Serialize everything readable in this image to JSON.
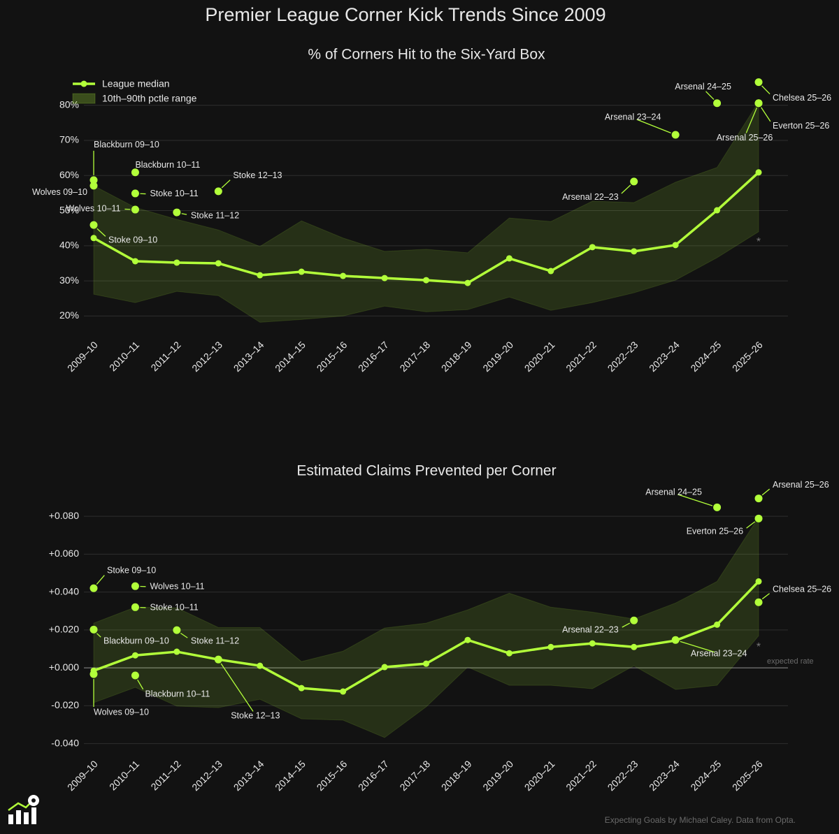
{
  "title": "Premier League Corner Kick Trends Since 2009",
  "footer": "Expecting Goals by Michael Caley. Data from Opta.",
  "chart_data": [
    {
      "type": "line",
      "title": "% of Corners Hit to the Six-Yard Box",
      "categories": [
        "2009–10",
        "2010–11",
        "2011–12",
        "2012–13",
        "2013–14",
        "2014–15",
        "2015–16",
        "2016–17",
        "2017–18",
        "2018–19",
        "2019–20",
        "2020–21",
        "2021–22",
        "2022–23",
        "2023–24",
        "2024–25",
        "2025–26"
      ],
      "series": [
        {
          "name": "League median",
          "color": "#b2ff3a",
          "values": [
            42.2,
            35.6,
            35.2,
            35.0,
            31.6,
            32.6,
            31.4,
            30.8,
            30.2,
            29.4,
            36.4,
            32.8,
            39.6,
            38.4,
            40.2,
            50.1,
            60.9
          ]
        }
      ],
      "band": {
        "name": "10th–90th pctle range",
        "color": "#b2ff3a",
        "lower": [
          26.2,
          23.8,
          27.0,
          25.8,
          18.2,
          19.0,
          20.0,
          22.8,
          21.2,
          21.8,
          25.4,
          21.6,
          23.8,
          26.6,
          30.2,
          36.6,
          44.0
        ],
        "upper": [
          57.1,
          50.9,
          47.5,
          44.5,
          39.8,
          47.1,
          42.2,
          38.4,
          39.0,
          38.0,
          47.9,
          46.9,
          52.7,
          52.3,
          58.1,
          62.3,
          81.0
        ]
      },
      "highlights": [
        {
          "label": "Blackburn 09–10",
          "category": "2009–10",
          "value": 58.7
        },
        {
          "label": "Wolves 09–10",
          "category": "2009–10",
          "value": 57.1
        },
        {
          "label": "Stoke 09–10",
          "category": "2009–10",
          "value": 45.9
        },
        {
          "label": "Blackburn 10–11",
          "category": "2010–11",
          "value": 60.9
        },
        {
          "label": "Stoke 10–11",
          "category": "2010–11",
          "value": 54.9
        },
        {
          "label": "Wolves 10–11",
          "category": "2010–11",
          "value": 50.3
        },
        {
          "label": "Stoke 11–12",
          "category": "2011–12",
          "value": 49.5
        },
        {
          "label": "Stoke 12–13",
          "category": "2012–13",
          "value": 55.5
        },
        {
          "label": "Arsenal 22–23",
          "category": "2022–23",
          "value": 58.3
        },
        {
          "label": "Arsenal 23–24",
          "category": "2023–24",
          "value": 71.6
        },
        {
          "label": "Arsenal 24–25",
          "category": "2024–25",
          "value": 80.6
        },
        {
          "label": "Chelsea 25–26",
          "category": "2025–26",
          "value": 86.6
        },
        {
          "label": "Everton 25–26",
          "category": "2025–26",
          "value": 80.6
        },
        {
          "label": "Arsenal 25–26",
          "category": "2025–26",
          "value": 80.6
        }
      ],
      "notes": [
        "*"
      ],
      "ylim": [
        14.5,
        90.1
      ],
      "yticks": [
        {
          "value": 20,
          "label": "20%"
        },
        {
          "value": 30,
          "label": "30%"
        },
        {
          "value": 40,
          "label": "40%"
        },
        {
          "value": 50,
          "label": "50%"
        },
        {
          "value": 60,
          "label": "60%"
        },
        {
          "value": 70,
          "label": "70%"
        },
        {
          "value": 80,
          "label": "80%"
        }
      ],
      "grid": true,
      "legend": "upper left"
    },
    {
      "type": "line",
      "title": "Estimated Claims Prevented per Corner",
      "categories": [
        "2009–10",
        "2010–11",
        "2011–12",
        "2012–13",
        "2013–14",
        "2014–15",
        "2015–16",
        "2016–17",
        "2017–18",
        "2018–19",
        "2019–20",
        "2020–21",
        "2021–22",
        "2022–23",
        "2023–24",
        "2024–25",
        "2025–26"
      ],
      "series": [
        {
          "name": "League median",
          "color": "#b2ff3a",
          "values": [
            -0.0015,
            0.0066,
            0.0085,
            0.0044,
            0.0011,
            -0.0107,
            -0.0125,
            0.0004,
            0.0022,
            0.0147,
            0.0077,
            0.011,
            0.0129,
            0.011,
            0.0144,
            0.0228,
            0.0456
          ]
        }
      ],
      "band": {
        "name": "10th–90th pctle range",
        "color": "#b2ff3a",
        "lower": [
          -0.0184,
          -0.0103,
          -0.0202,
          -0.021,
          -0.0166,
          -0.0269,
          -0.0276,
          -0.0368,
          -0.0206,
          0.0004,
          -0.0092,
          -0.0092,
          -0.011,
          0.0011,
          -0.0114,
          -0.0092,
          0.0169
        ],
        "upper": [
          0.0236,
          0.032,
          0.0317,
          0.0213,
          0.0213,
          0.0033,
          0.0088,
          0.021,
          0.0236,
          0.0306,
          0.0394,
          0.032,
          0.0294,
          0.0258,
          0.0342,
          0.0456,
          0.0795
        ]
      },
      "highlights": [
        {
          "label": "Stoke 09–10",
          "category": "2009–10",
          "value": 0.042
        },
        {
          "label": "Blackburn 09–10",
          "category": "2009–10",
          "value": 0.0202
        },
        {
          "label": "Wolves 09–10",
          "category": "2009–10",
          "value": -0.0033
        },
        {
          "label": "Wolves 10–11",
          "category": "2010–11",
          "value": 0.0431
        },
        {
          "label": "Stoke 10–11",
          "category": "2010–11",
          "value": 0.032
        },
        {
          "label": "Blackburn 10–11",
          "category": "2010–11",
          "value": -0.004
        },
        {
          "label": "Stoke 11–12",
          "category": "2011–12",
          "value": 0.0199
        },
        {
          "label": "Stoke 12–13",
          "category": "2012–13",
          "value": 0.0044
        },
        {
          "label": "Arsenal 22–23",
          "category": "2022–23",
          "value": 0.025
        },
        {
          "label": "Arsenal 23–24",
          "category": "2023–24",
          "value": 0.0147
        },
        {
          "label": "Arsenal 24–25",
          "category": "2024–25",
          "value": 0.0847
        },
        {
          "label": "Arsenal 25–26",
          "category": "2025–26",
          "value": 0.0894
        },
        {
          "label": "Everton 25–26",
          "category": "2025–26",
          "value": 0.0788
        },
        {
          "label": "Chelsea 25–26",
          "category": "2025–26",
          "value": 0.0346
        }
      ],
      "reference_line": {
        "value": 0,
        "label": "expected rate"
      },
      "notes": [
        "*"
      ],
      "ylim": [
        -0.0475,
        0.0944
      ],
      "yticks": [
        {
          "value": -0.04,
          "label": "-0.040"
        },
        {
          "value": -0.02,
          "label": "-0.020"
        },
        {
          "value": 0,
          "label": "+0.000"
        },
        {
          "value": 0.02,
          "label": "+0.020"
        },
        {
          "value": 0.04,
          "label": "+0.040"
        },
        {
          "value": 0.06,
          "label": "+0.060"
        },
        {
          "value": 0.08,
          "label": "+0.080"
        }
      ],
      "grid": true
    }
  ]
}
